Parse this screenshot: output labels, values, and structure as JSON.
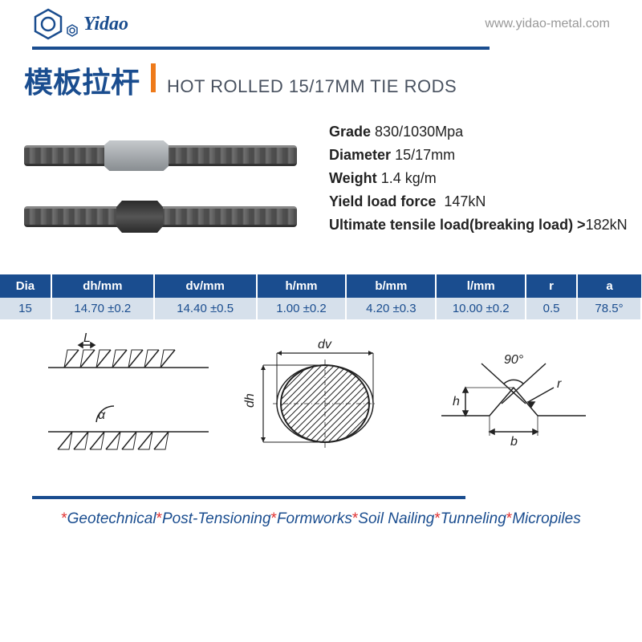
{
  "header": {
    "brand": "Yidao",
    "url": "www.yidao-metal.com"
  },
  "title": {
    "cn": "模板拉杆",
    "en": "HOT ROLLED 15/17MM  TIE RODS"
  },
  "specs": {
    "grade_label": "Grade",
    "grade_value": "830/1030Mpa",
    "diameter_label": "Diameter",
    "diameter_value": "15/17mm",
    "weight_label": "Weight",
    "weight_value": "1.4  kg/m",
    "yield_label": "Yield load force",
    "yield_value": "147kN",
    "ultimate_label": "Ultimate tensile load(breaking load) >",
    "ultimate_value": "182kN"
  },
  "table": {
    "columns": [
      "Dia",
      "dh/mm",
      "dv/mm",
      "h/mm",
      "b/mm",
      "l/mm",
      "r",
      "a"
    ],
    "widths_pct": [
      8,
      16,
      16,
      14,
      14,
      14,
      8,
      10
    ],
    "header_bg": "#1a4d8f",
    "header_color": "#ffffff",
    "row_bg": "#d6e0eb",
    "cell_color": "#1a4d8f",
    "rows": [
      [
        "15",
        "14.70    ±0.2",
        "14.40    ±0.5",
        "1.00    ±0.2",
        "4.20    ±0.3",
        "10.00    ±0.2",
        "0.5",
        "78.5°"
      ]
    ]
  },
  "diagrams": {
    "rod_side": {
      "label_L": "L",
      "label_alpha": "α"
    },
    "cross": {
      "label_dv": "dv",
      "label_dh": "dh"
    },
    "groove": {
      "label_90": "90°",
      "label_r": "r",
      "label_h": "h",
      "label_b": "b"
    },
    "stroke": "#222",
    "hatch": "#222"
  },
  "footer": {
    "items": [
      "Geotechnical",
      "Post-Tensioning",
      "Formworks",
      "Soil Nailing",
      "Tunneling",
      "Micropiles"
    ]
  },
  "colors": {
    "primary": "#1a4d8f",
    "accent": "#ee7a1a",
    "footer_star": "#e03030"
  }
}
